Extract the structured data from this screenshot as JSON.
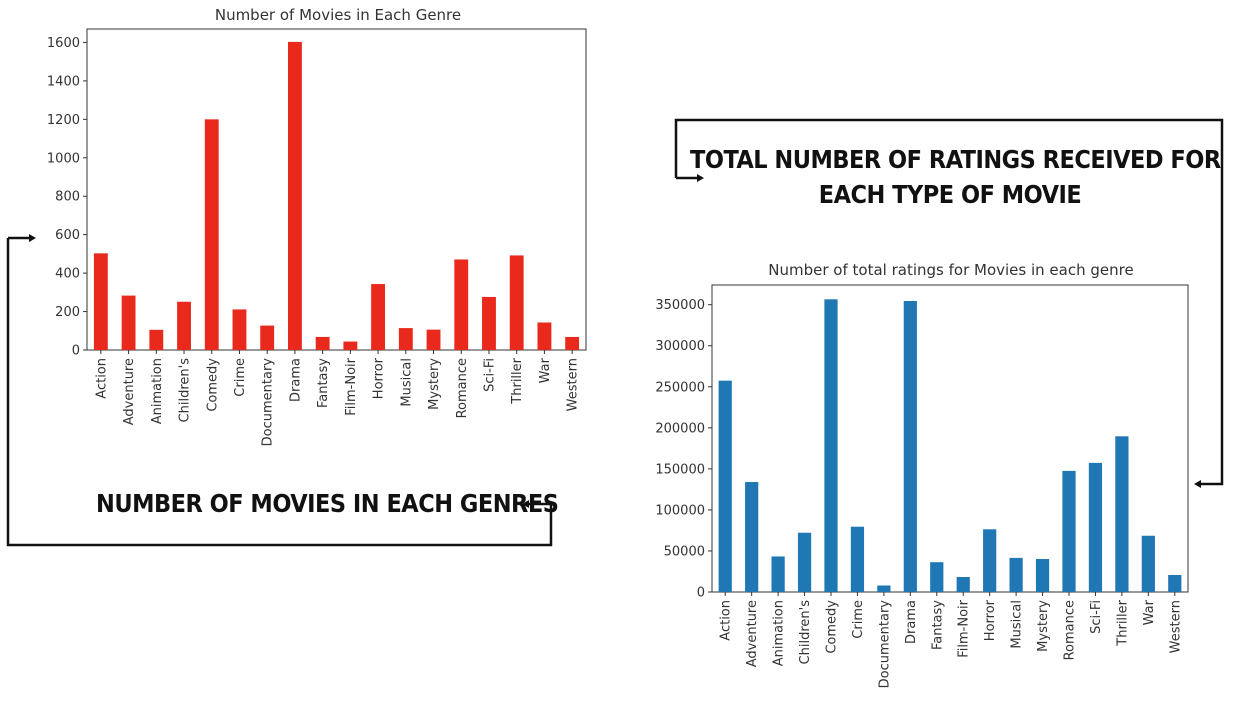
{
  "annotations": {
    "top_line1": "TOTAL NUMBER OF RATINGS RECEIVED FOR",
    "top_line2": "EACH TYPE OF MOVIE",
    "bottom": "NUMBER OF MOVIES  IN EACH GENRES"
  },
  "colors": {
    "movies_bar": "#e8291c",
    "ratings_bar": "#1f77b4"
  },
  "chart_data": [
    {
      "type": "bar",
      "title": "Number of Movies in Each Genre",
      "xlabel": "",
      "ylabel": "",
      "categories": [
        "Action",
        "Adventure",
        "Animation",
        "Children's",
        "Comedy",
        "Crime",
        "Documentary",
        "Drama",
        "Fantasy",
        "Film-Noir",
        "Horror",
        "Musical",
        "Mystery",
        "Romance",
        "Sci-Fi",
        "Thriller",
        "War",
        "Western"
      ],
      "values": [
        503,
        283,
        105,
        251,
        1200,
        211,
        127,
        1603,
        68,
        44,
        343,
        114,
        106,
        471,
        276,
        492,
        143,
        68
      ],
      "ylim": [
        0,
        1670
      ],
      "yticks": [
        0,
        200,
        400,
        600,
        800,
        1000,
        1200,
        1400,
        1600
      ],
      "ytick_labels": [
        "0",
        "200",
        "400",
        "600",
        "800",
        "1000",
        "1200",
        "1400",
        "1600"
      ],
      "grid": false,
      "legend": "none"
    },
    {
      "type": "bar",
      "title": "Number of total ratings for Movies in each genre",
      "xlabel": "",
      "ylabel": "",
      "categories": [
        "Action",
        "Adventure",
        "Animation",
        "Children's",
        "Comedy",
        "Crime",
        "Documentary",
        "Drama",
        "Fantasy",
        "Film-Noir",
        "Horror",
        "Musical",
        "Mystery",
        "Romance",
        "Sci-Fi",
        "Thriller",
        "War",
        "Western"
      ],
      "values": [
        257457,
        133953,
        43293,
        72186,
        356580,
        79541,
        7910,
        354529,
        36301,
        18261,
        76386,
        41533,
        40178,
        147523,
        157294,
        189680,
        68527,
        20683
      ],
      "ylim": [
        0,
        374000
      ],
      "yticks": [
        0,
        50000,
        100000,
        150000,
        200000,
        250000,
        300000,
        350000
      ],
      "ytick_labels": [
        "0",
        "50000",
        "100000",
        "150000",
        "200000",
        "250000",
        "300000",
        "350000"
      ],
      "grid": false,
      "legend": "none"
    }
  ]
}
